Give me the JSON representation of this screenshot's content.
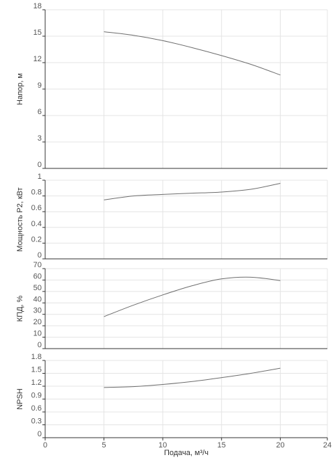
{
  "chart_data": [
    {
      "type": "line",
      "ylabel": "Напор, м",
      "ylim": [
        0,
        18
      ],
      "yticks": [
        "0",
        "3",
        "6",
        "9",
        "12",
        "15",
        "18"
      ],
      "xlim": [
        0,
        24
      ],
      "grid": true,
      "series": [
        {
          "x": [
            5,
            7.5,
            10,
            12.5,
            15,
            17.5,
            20
          ],
          "y": [
            15.5,
            15.1,
            14.5,
            13.7,
            12.8,
            11.8,
            10.6
          ]
        }
      ]
    },
    {
      "type": "line",
      "ylabel": "Мощность P2, кВт",
      "ylim": [
        0,
        1
      ],
      "yticks": [
        "0",
        "0.2",
        "0.4",
        "0.6",
        "0.8",
        "1"
      ],
      "xlim": [
        0,
        24
      ],
      "grid": true,
      "series": [
        {
          "x": [
            5,
            7.5,
            10,
            12.5,
            15,
            17.5,
            20
          ],
          "y": [
            0.75,
            0.8,
            0.82,
            0.835,
            0.85,
            0.885,
            0.96
          ]
        }
      ]
    },
    {
      "type": "line",
      "ylabel": "КПД, %",
      "ylim": [
        0,
        70
      ],
      "yticks": [
        "0",
        "10",
        "20",
        "30",
        "40",
        "50",
        "60",
        "70"
      ],
      "xlim": [
        0,
        24
      ],
      "grid": true,
      "series": [
        {
          "x": [
            5,
            7.5,
            10,
            12.5,
            15,
            17.5,
            20
          ],
          "y": [
            28,
            38,
            47,
            55,
            61,
            62.5,
            59.5
          ]
        }
      ]
    },
    {
      "type": "line",
      "ylabel": "NPSH",
      "ylim": [
        0,
        1.8
      ],
      "yticks": [
        "0",
        "0.3",
        "0.6",
        "0.9",
        "1.2",
        "1.5",
        "1.8"
      ],
      "xlabel": "Подача, м³/ч",
      "xlim": [
        0,
        24
      ],
      "xticks": [
        "0",
        "5",
        "10",
        "15",
        "20",
        "24"
      ],
      "grid": true,
      "series": [
        {
          "x": [
            5,
            7.5,
            10,
            12.5,
            15,
            17.5,
            20
          ],
          "y": [
            1.17,
            1.19,
            1.24,
            1.31,
            1.4,
            1.5,
            1.62
          ]
        }
      ]
    }
  ]
}
